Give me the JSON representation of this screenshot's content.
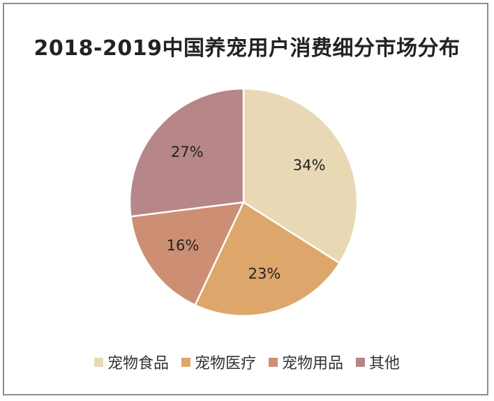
{
  "chart_data": {
    "type": "pie",
    "title": "2018-2019中国养宠用户消费细分市场分布",
    "categories": [
      "宠物食品",
      "宠物医疗",
      "宠物用品",
      "其他"
    ],
    "values": [
      34,
      23,
      16,
      27
    ],
    "labels": [
      "34%",
      "23%",
      "16%",
      "27%"
    ],
    "colors": [
      "#E8D9B4",
      "#DDA66A",
      "#CD8F73",
      "#B68689"
    ],
    "start_angle_deg": 0,
    "direction": "clockwise",
    "legend_position": "bottom"
  }
}
